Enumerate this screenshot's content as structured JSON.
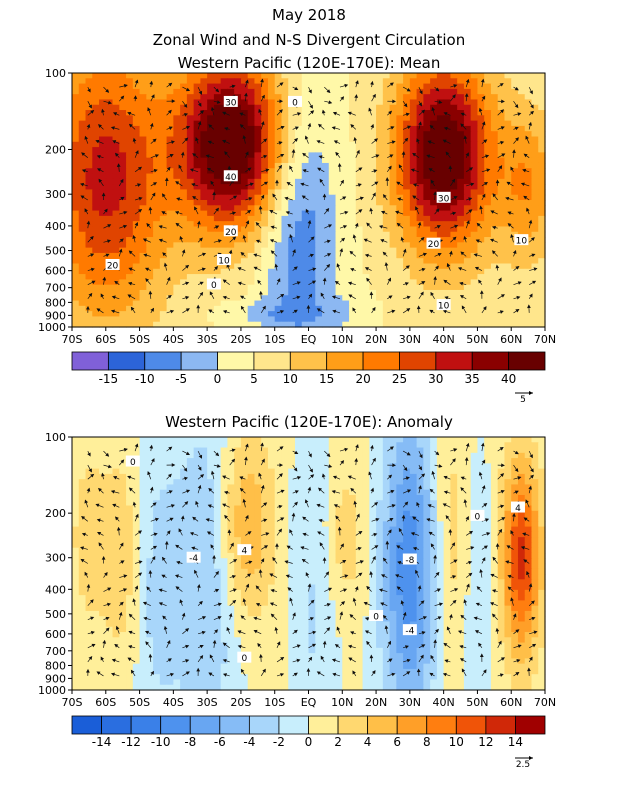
{
  "chart_data": [
    {
      "type": "heatmap",
      "title": "May 2018",
      "subtitle": "Zonal Wind and N-S Divergent Circulation",
      "panel_title": "Western Pacific (120E-170E): Mean",
      "x_ticks": [
        "70S",
        "60S",
        "50S",
        "40S",
        "30S",
        "20S",
        "10S",
        "EQ",
        "10N",
        "20N",
        "30N",
        "40N",
        "50N",
        "60N",
        "70N"
      ],
      "x_values": [
        -70,
        -60,
        -50,
        -40,
        -30,
        -20,
        -10,
        0,
        10,
        20,
        30,
        40,
        50,
        60,
        70
      ],
      "xlim": [
        -70,
        70
      ],
      "y_ticks": [
        "100",
        "200",
        "300",
        "400",
        "500",
        "600",
        "700",
        "800",
        "900",
        "1000"
      ],
      "y_values": [
        100,
        200,
        300,
        400,
        500,
        600,
        700,
        800,
        900,
        1000
      ],
      "ylim": [
        100,
        1000
      ],
      "y_scale": "log",
      "colorbar_levels": [
        -20,
        -15,
        -10,
        -5,
        0,
        5,
        10,
        15,
        20,
        25,
        30,
        35,
        40,
        45
      ],
      "colorbar_labels": [
        "-15",
        "-10",
        "-5",
        "0",
        "5",
        "10",
        "15",
        "20",
        "25",
        "30",
        "35",
        "40"
      ],
      "colorbar_colors": [
        "#8060d8",
        "#2c64d8",
        "#4e8ae8",
        "#8cb8f2",
        "#fff8a8",
        "#ffe68c",
        "#ffc24a",
        "#ff9e18",
        "#ff7a00",
        "#e04400",
        "#c01010",
        "#8a0000",
        "#680000"
      ],
      "contour_labels": [
        {
          "text": "30",
          "x": -23,
          "y": 130
        },
        {
          "text": "40",
          "x": -23,
          "y": 255
        },
        {
          "text": "20",
          "x": -23,
          "y": 420
        },
        {
          "text": "10",
          "x": -25,
          "y": 545
        },
        {
          "text": "0",
          "x": -28,
          "y": 680
        },
        {
          "text": "0",
          "x": -4,
          "y": 130
        },
        {
          "text": "20",
          "x": -58,
          "y": 570
        },
        {
          "text": "30",
          "x": 40,
          "y": 310
        },
        {
          "text": "20",
          "x": 37,
          "y": 470
        },
        {
          "text": "10",
          "x": 40,
          "y": 820
        },
        {
          "text": "10",
          "x": 63,
          "y": 455
        }
      ],
      "reference_vector": "5",
      "fields": [
        {
          "cx": -23,
          "cy": 190,
          "sx": 11,
          "sy": 0.55,
          "amp": 44
        },
        {
          "cx": -60,
          "cy": 260,
          "sx": 13,
          "sy": 0.9,
          "amp": 27
        },
        {
          "cx": 40,
          "cy": 210,
          "sx": 10,
          "sy": 0.6,
          "amp": 42
        },
        {
          "cx": 65,
          "cy": 280,
          "sx": 6,
          "sy": 0.5,
          "amp": 14
        },
        {
          "cx": -3,
          "cy": 420,
          "sx": 8,
          "sy": 0.9,
          "amp": -14
        },
        {
          "cx": -15,
          "cy": 880,
          "sx": 9,
          "sy": 0.08,
          "amp": -5
        },
        {
          "cx": 10,
          "cy": 870,
          "sx": 6,
          "sy": 0.1,
          "amp": -4
        }
      ],
      "base_value": 5
    },
    {
      "type": "heatmap",
      "panel_title": "Western Pacific (120E-170E): Anomaly",
      "x_ticks": [
        "70S",
        "60S",
        "50S",
        "40S",
        "30S",
        "20S",
        "10S",
        "EQ",
        "10N",
        "20N",
        "30N",
        "40N",
        "50N",
        "60N",
        "70N"
      ],
      "x_values": [
        -70,
        -60,
        -50,
        -40,
        -30,
        -20,
        -10,
        0,
        10,
        20,
        30,
        40,
        50,
        60,
        70
      ],
      "xlim": [
        -70,
        70
      ],
      "y_ticks": [
        "100",
        "200",
        "300",
        "400",
        "500",
        "600",
        "700",
        "800",
        "900",
        "1000"
      ],
      "y_values": [
        100,
        200,
        300,
        400,
        500,
        600,
        700,
        800,
        900,
        1000
      ],
      "ylim": [
        100,
        1000
      ],
      "y_scale": "log",
      "colorbar_levels": [
        -16,
        -14,
        -12,
        -10,
        -8,
        -6,
        -4,
        -2,
        0,
        2,
        4,
        6,
        8,
        10,
        12,
        14,
        16
      ],
      "colorbar_labels": [
        "-14",
        "-12",
        "-10",
        "-8",
        "-6",
        "-4",
        "-2",
        "0",
        "2",
        "4",
        "6",
        "8",
        "10",
        "12",
        "14"
      ],
      "colorbar_colors": [
        "#1a5ed8",
        "#2a6ee0",
        "#3a80e8",
        "#4e92ee",
        "#68a6f2",
        "#86bcf6",
        "#a8d6fa",
        "#c8eefc",
        "#ffef9a",
        "#ffd870",
        "#ffbf48",
        "#ff9f28",
        "#ff7e10",
        "#f05408",
        "#d02808",
        "#a00000"
      ],
      "contour_labels": [
        {
          "text": "0",
          "x": -52,
          "y": 125
        },
        {
          "text": "-4",
          "x": -34,
          "y": 300
        },
        {
          "text": "4",
          "x": -19,
          "y": 280
        },
        {
          "text": "0",
          "x": -19,
          "y": 745
        },
        {
          "text": "-8",
          "x": 30,
          "y": 305
        },
        {
          "text": "-4",
          "x": 30,
          "y": 580
        },
        {
          "text": "0",
          "x": 20,
          "y": 510
        },
        {
          "text": "0",
          "x": 50,
          "y": 205
        },
        {
          "text": "4",
          "x": 62,
          "y": 190
        }
      ],
      "reference_vector": "2.5",
      "fields": [
        {
          "cx": -30,
          "cy": 350,
          "sx": 7,
          "sy": 1.1,
          "amp": -5
        },
        {
          "cx": -19,
          "cy": 230,
          "sx": 6,
          "sy": 0.6,
          "amp": 6
        },
        {
          "cx": -45,
          "cy": 400,
          "sx": 5,
          "sy": 1.0,
          "amp": -3
        },
        {
          "cx": -55,
          "cy": 300,
          "sx": 4,
          "sy": 0.7,
          "amp": 3
        },
        {
          "cx": -65,
          "cy": 250,
          "sx": 4,
          "sy": 0.6,
          "amp": 2.5
        },
        {
          "cx": 2,
          "cy": 380,
          "sx": 5,
          "sy": 1.2,
          "amp": -3
        },
        {
          "cx": 10,
          "cy": 250,
          "sx": 5,
          "sy": 0.5,
          "amp": 3
        },
        {
          "cx": 30,
          "cy": 330,
          "sx": 6,
          "sy": 1.0,
          "amp": -10
        },
        {
          "cx": 50,
          "cy": 380,
          "sx": 3,
          "sy": 0.9,
          "amp": -3
        },
        {
          "cx": 63,
          "cy": 300,
          "sx": 4,
          "sy": 0.6,
          "amp": 12
        },
        {
          "cx": 42,
          "cy": 250,
          "sx": 5,
          "sy": 0.8,
          "amp": 3
        }
      ],
      "base_value": 0.5
    }
  ]
}
